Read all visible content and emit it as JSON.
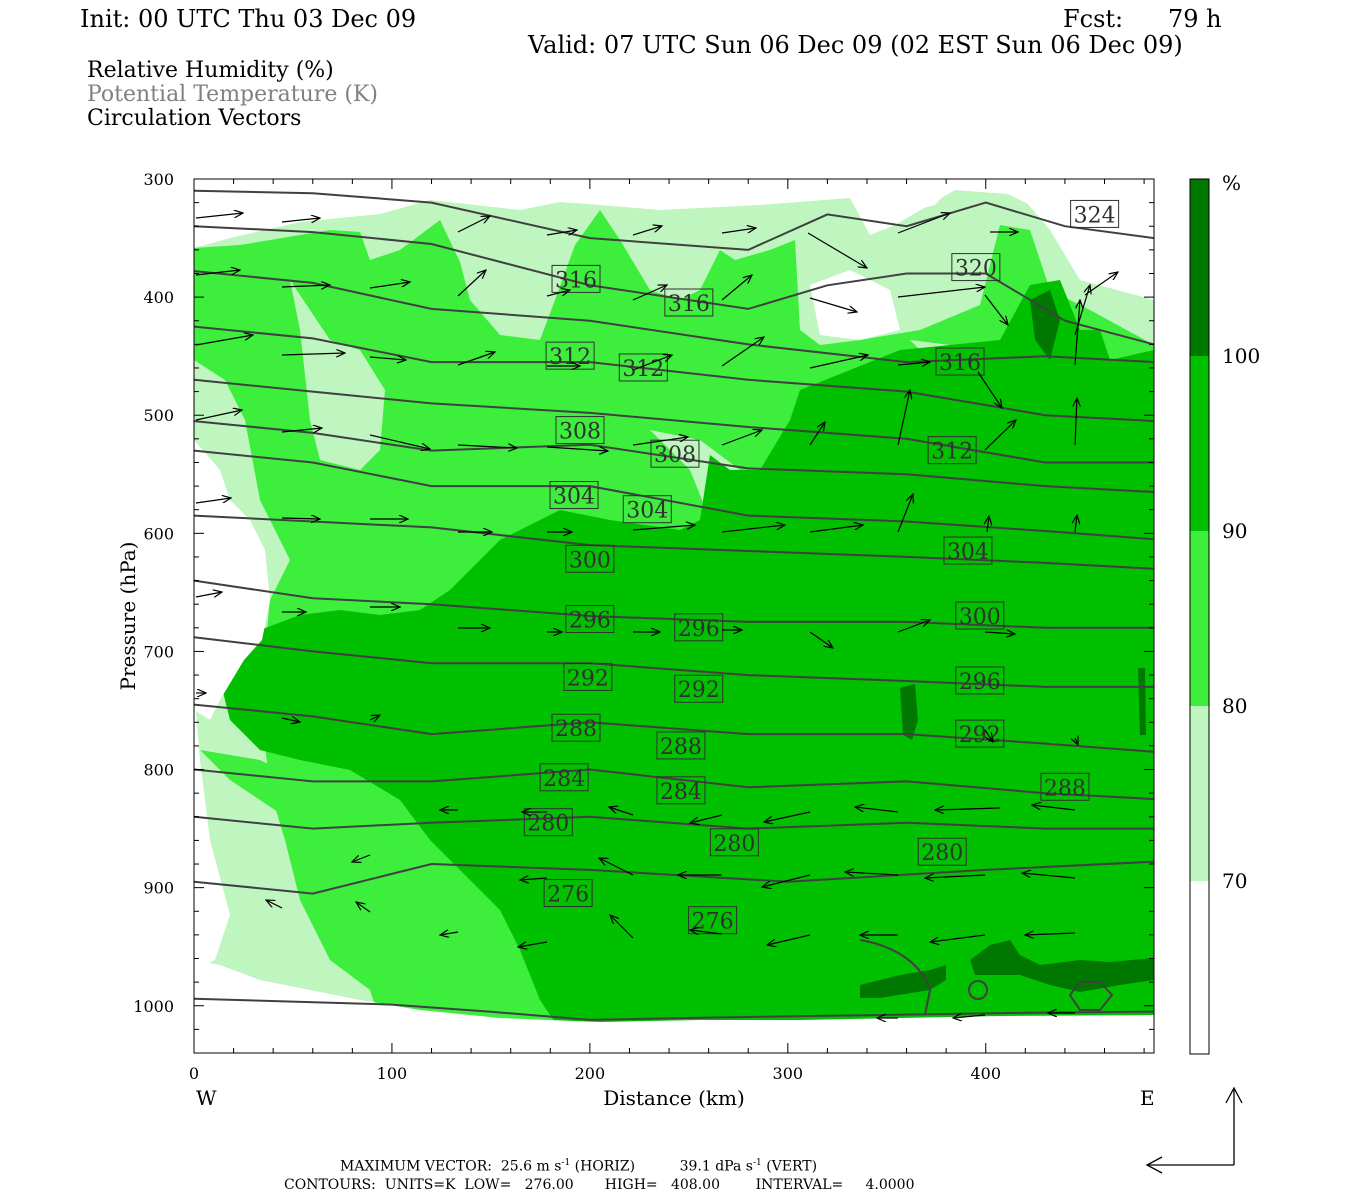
{
  "header": {
    "init": "Init: 00 UTC Thu 03 Dec 09",
    "fcst_label": "Fcst:",
    "fcst_value": "79 h",
    "valid": "Valid: 07 UTC Sun 06 Dec 09 (02 EST Sun 06 Dec 09)"
  },
  "fields": {
    "rh": "Relative Humidity (%)",
    "theta": "Potential Temperature (K)",
    "vectors": "Circulation Vectors"
  },
  "colors": {
    "rh_70_80": "#bff5bf",
    "rh_80_90": "#3dee3d",
    "rh_90_100": "#00c000",
    "rh_100": "#007800",
    "theta_line": "#404040",
    "label_text": "#303030",
    "theta_text_gray": "#808080"
  },
  "chart_data": {
    "type": "cross-section",
    "xlabel": "Distance (km)",
    "ylabel": "Pressure (hPa)",
    "x_ticks": [
      0,
      100,
      200,
      300,
      400
    ],
    "y_ticks": [
      300,
      400,
      500,
      600,
      700,
      800,
      900,
      1000
    ],
    "xlim": [
      0,
      485
    ],
    "ylim": [
      300,
      1040
    ],
    "west_label": "W",
    "east_label": "E",
    "colorbar": {
      "unit": "%",
      "levels": [
        70,
        80,
        90,
        100
      ],
      "labels": [
        "100",
        "90",
        "80",
        "70"
      ]
    },
    "theta_labels": [
      {
        "v": "324",
        "x": 455,
        "p": 330
      },
      {
        "v": "320",
        "x": 395,
        "p": 375
      },
      {
        "v": "316",
        "x": 193,
        "p": 385
      },
      {
        "v": "316",
        "x": 250,
        "p": 405
      },
      {
        "v": "316",
        "x": 387,
        "p": 455
      },
      {
        "v": "312",
        "x": 190,
        "p": 450
      },
      {
        "v": "312",
        "x": 227,
        "p": 460
      },
      {
        "v": "312",
        "x": 383,
        "p": 530
      },
      {
        "v": "308",
        "x": 195,
        "p": 513
      },
      {
        "v": "308",
        "x": 243,
        "p": 533
      },
      {
        "v": "304",
        "x": 192,
        "p": 568
      },
      {
        "v": "304",
        "x": 229,
        "p": 580
      },
      {
        "v": "304",
        "x": 391,
        "p": 615
      },
      {
        "v": "300",
        "x": 200,
        "p": 622
      },
      {
        "v": "300",
        "x": 397,
        "p": 670
      },
      {
        "v": "296",
        "x": 200,
        "p": 673
      },
      {
        "v": "296",
        "x": 255,
        "p": 680
      },
      {
        "v": "296",
        "x": 397,
        "p": 725
      },
      {
        "v": "292",
        "x": 199,
        "p": 722
      },
      {
        "v": "292",
        "x": 255,
        "p": 732
      },
      {
        "v": "292",
        "x": 397,
        "p": 770
      },
      {
        "v": "288",
        "x": 193,
        "p": 765
      },
      {
        "v": "288",
        "x": 246,
        "p": 780
      },
      {
        "v": "288",
        "x": 440,
        "p": 815
      },
      {
        "v": "284",
        "x": 187,
        "p": 807
      },
      {
        "v": "284",
        "x": 246,
        "p": 818
      },
      {
        "v": "280",
        "x": 179,
        "p": 845
      },
      {
        "v": "280",
        "x": 273,
        "p": 862
      },
      {
        "v": "280",
        "x": 378,
        "p": 870
      },
      {
        "v": "276",
        "x": 189,
        "p": 905
      },
      {
        "v": "276",
        "x": 262,
        "p": 928
      }
    ],
    "theta_lines": [
      {
        "x": [
          0,
          100,
          150,
          200,
          260,
          300,
          340,
          380,
          420,
          485
        ],
        "p": [
          994,
          999,
          1005,
          1012,
          1010,
          1009,
          1008,
          1007,
          1006,
          1005
        ]
      },
      {
        "x": [
          0,
          60,
          120,
          200,
          300,
          400,
          485
        ],
        "p": [
          895,
          905,
          880,
          885,
          895,
          885,
          878
        ]
      },
      {
        "x": [
          0,
          60,
          120,
          200,
          280,
          360,
          430,
          485
        ],
        "p": [
          840,
          850,
          845,
          840,
          850,
          845,
          850,
          850
        ]
      },
      {
        "x": [
          0,
          60,
          120,
          200,
          280,
          360,
          430,
          485
        ],
        "p": [
          800,
          810,
          810,
          800,
          815,
          810,
          820,
          825
        ]
      },
      {
        "x": [
          0,
          60,
          120,
          200,
          280,
          360,
          430,
          485
        ],
        "p": [
          745,
          755,
          770,
          760,
          770,
          770,
          778,
          785
        ]
      },
      {
        "x": [
          0,
          60,
          120,
          200,
          280,
          360,
          430,
          485
        ],
        "p": [
          688,
          700,
          710,
          710,
          720,
          725,
          730,
          730
        ]
      },
      {
        "x": [
          0,
          60,
          120,
          200,
          280,
          360,
          430,
          485
        ],
        "p": [
          640,
          655,
          660,
          670,
          675,
          675,
          680,
          680
        ]
      },
      {
        "x": [
          0,
          60,
          120,
          200,
          280,
          360,
          430,
          485
        ],
        "p": [
          585,
          590,
          595,
          610,
          615,
          620,
          625,
          630
        ]
      },
      {
        "x": [
          0,
          60,
          120,
          200,
          280,
          360,
          430,
          485
        ],
        "p": [
          530,
          540,
          560,
          560,
          585,
          590,
          598,
          605
        ]
      },
      {
        "x": [
          0,
          60,
          120,
          200,
          280,
          360,
          430,
          485
        ],
        "p": [
          505,
          515,
          530,
          525,
          545,
          550,
          560,
          565
        ]
      },
      {
        "x": [
          0,
          60,
          120,
          200,
          280,
          360,
          430,
          485
        ],
        "p": [
          470,
          480,
          490,
          498,
          510,
          520,
          540,
          540
        ]
      },
      {
        "x": [
          0,
          60,
          120,
          200,
          280,
          360,
          430,
          485
        ],
        "p": [
          425,
          435,
          455,
          455,
          470,
          480,
          500,
          505
        ]
      },
      {
        "x": [
          0,
          60,
          120,
          200,
          280,
          360,
          430,
          485
        ],
        "p": [
          378,
          388,
          410,
          420,
          440,
          455,
          450,
          455
        ]
      },
      {
        "x": [
          0,
          60,
          120,
          200,
          280,
          320,
          360,
          400,
          440,
          485
        ],
        "p": [
          340,
          345,
          355,
          390,
          410,
          390,
          380,
          380,
          420,
          440
        ]
      },
      {
        "x": [
          0,
          60,
          120,
          200,
          280,
          320,
          360,
          400,
          440,
          485
        ],
        "p": [
          310,
          312,
          320,
          350,
          360,
          330,
          340,
          320,
          340,
          350
        ]
      }
    ],
    "max_vector": "MAXIMUM VECTOR:  25.6 m s",
    "max_vector_h": "(HORIZ)",
    "max_vector_v_value": "39.1 dPa s",
    "max_vector_v": "(VERT)",
    "contours": "CONTOURS:  UNITS=K  LOW=   276.00       HIGH=   408.00        INTERVAL=     4.0000"
  }
}
